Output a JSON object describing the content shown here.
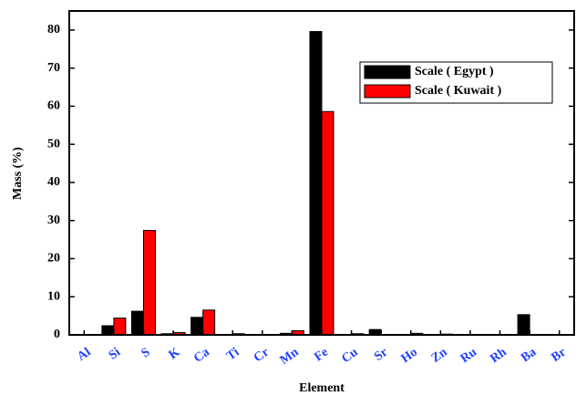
{
  "chart_data": {
    "type": "bar",
    "x_label": "Element",
    "y_label": "Mass (%)",
    "categories": [
      "Al",
      "Si",
      "S",
      "K",
      "Ca",
      "Ti",
      "Cr",
      "Mn",
      "Fe",
      "Cu",
      "Sr",
      "Ho",
      "Zn",
      "Ru",
      "Rh",
      "Ba",
      "Br"
    ],
    "series": [
      {
        "name": "Scale ( Egypt )",
        "color": "#000000",
        "values": [
          0,
          2.4,
          6.2,
          0.3,
          4.6,
          0,
          0,
          0.4,
          79.6,
          0,
          1.4,
          0,
          0.1,
          0,
          0,
          5.3,
          0
        ]
      },
      {
        "name": "Scale ( Kuwait )",
        "color": "#ff0000",
        "values": [
          0,
          4.4,
          27.4,
          0.6,
          6.5,
          0.3,
          0.1,
          1.1,
          58.6,
          0.3,
          0.1,
          0.4,
          0.2,
          0.1,
          0,
          0,
          0
        ]
      }
    ],
    "ylim": [
      0,
      85
    ],
    "yticks": [
      0,
      10,
      20,
      30,
      40,
      50,
      60,
      70,
      80
    ],
    "category_label_color": "#1f3fff"
  }
}
